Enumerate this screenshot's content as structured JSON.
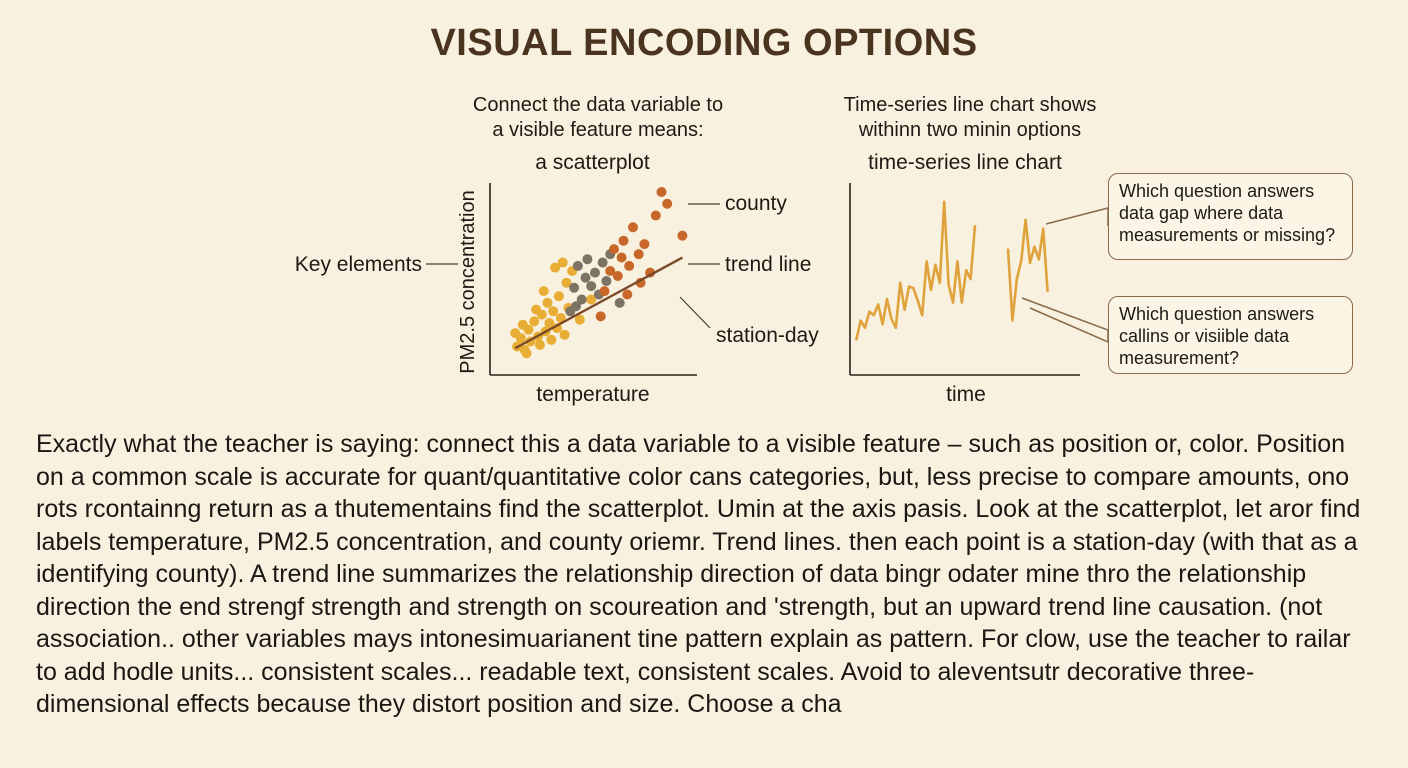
{
  "title": "VISUAL ENCODING OPTIONS",
  "scatter_panel": {
    "caption_line1": "Connect the data variable to",
    "caption_line2": "a visible feature means:",
    "chart_title": "a scatterplot",
    "xlabel": "temperature",
    "ylabel": "PM2.5 concentration",
    "annotations": {
      "key_elements": "Key elements",
      "county": "county",
      "trend_line": "trend line",
      "station_day": "station-day"
    }
  },
  "line_panel": {
    "caption_line1": "Time-series line chart shows",
    "caption_line2": "withinn two minin options",
    "chart_title": "time-series line chart",
    "xlabel": "time",
    "callout_gap": "Which question answers data gap where data measurements or missing?",
    "callout_visible": "Which question answers callins or visiible data measurement?"
  },
  "paragraph": "Exactly what the teacher is saying: connect this a data variable to a visible feature – such as position or, color. Position on a common scale is accurate for quant/quantitative color cans categories, but, less precise to compare  amounts, ono rots rcontainng return as a thutementains find the scatterplot. Umin at the axis pasis. Look at the scatterplot, let aror find labels temperature, PM2.5 concentration, and county oriemr. Trend lines. then each point is a station-day (with that as a identifying county). A trend line summarizes the relationship direction of data bingr odater mine thro the relationship direction the end strengf strength and strength on scoureation and 'strength, but an upward trend line causation. (not association.. other variables mays intonesimuarianent tine pattern explain as pattern. For clow, use the teacher to railar to add hodle units... consistent scales... readable text, consistent scales. Avoid to aleventsutr decorative three-dimensional effects because they distort position and size. Choose a cha",
  "colors": {
    "background": "#f8f1df",
    "title": "#4a3420",
    "gold": "#e8ad35",
    "orange": "#c8672a",
    "gray": "#7d7364",
    "trend": "#7a4a28",
    "line": "#e0a23c"
  },
  "chart_data": [
    {
      "type": "scatter",
      "title": "a scatterplot",
      "xlabel": "temperature",
      "ylabel": "PM2.5 concentration",
      "xlim": [
        0,
        10
      ],
      "ylim": [
        0,
        10
      ],
      "groups": [
        {
          "color": "gold",
          "points": [
            [
              0.9,
              0.8
            ],
            [
              1.1,
              1.3
            ],
            [
              1.3,
              0.6
            ],
            [
              1.5,
              1.8
            ],
            [
              1.6,
              1.1
            ],
            [
              1.8,
              2.3
            ],
            [
              2.0,
              1.4
            ],
            [
              2.1,
              0.9
            ],
            [
              2.2,
              2.7
            ],
            [
              2.4,
              1.7
            ],
            [
              2.5,
              3.4
            ],
            [
              2.6,
              2.2
            ],
            [
              2.7,
              1.2
            ],
            [
              2.8,
              2.9
            ],
            [
              3.0,
              1.9
            ],
            [
              3.1,
              3.8
            ],
            [
              3.2,
              2.5
            ],
            [
              3.4,
              1.5
            ],
            [
              3.5,
              4.6
            ],
            [
              3.6,
              3.1
            ],
            [
              1.2,
              2.1
            ],
            [
              1.9,
              3.0
            ],
            [
              2.3,
              4.1
            ],
            [
              2.9,
              5.5
            ],
            [
              3.8,
              5.3
            ],
            [
              3.3,
              5.8
            ],
            [
              4.2,
              2.4
            ],
            [
              4.8,
              3.6
            ],
            [
              0.8,
              1.6
            ],
            [
              1.4,
              0.4
            ]
          ]
        },
        {
          "color": "gray",
          "points": [
            [
              3.7,
              2.9
            ],
            [
              3.9,
              4.3
            ],
            [
              4.1,
              5.6
            ],
            [
              4.3,
              3.6
            ],
            [
              4.5,
              4.9
            ],
            [
              4.6,
              6.0
            ],
            [
              4.8,
              4.4
            ],
            [
              5.0,
              5.2
            ],
            [
              5.2,
              3.9
            ],
            [
              5.4,
              5.8
            ],
            [
              5.6,
              4.7
            ],
            [
              6.3,
              3.4
            ],
            [
              4.0,
              3.2
            ],
            [
              5.8,
              6.3
            ]
          ]
        },
        {
          "color": "orange",
          "points": [
            [
              5.3,
              2.6
            ],
            [
              5.5,
              4.1
            ],
            [
              5.8,
              5.3
            ],
            [
              6.0,
              6.6
            ],
            [
              6.2,
              5.0
            ],
            [
              6.5,
              7.1
            ],
            [
              6.8,
              5.6
            ],
            [
              7.0,
              7.9
            ],
            [
              7.3,
              6.3
            ],
            [
              7.6,
              6.9
            ],
            [
              7.9,
              5.2
            ],
            [
              8.2,
              8.6
            ],
            [
              8.8,
              9.3
            ],
            [
              8.5,
              10.0
            ],
            [
              9.6,
              7.4
            ],
            [
              6.4,
              6.1
            ],
            [
              7.4,
              4.6
            ],
            [
              6.7,
              3.9
            ]
          ]
        }
      ],
      "trend_line": [
        [
          0.8,
          0.7
        ],
        [
          9.6,
          6.1
        ]
      ]
    },
    {
      "type": "line",
      "title": "time-series line chart",
      "xlabel": "time",
      "xlim": [
        0,
        100
      ],
      "ylim": [
        0,
        10
      ],
      "series": [
        {
          "values": [
            [
              1,
              1.2
            ],
            [
              3,
              2.3
            ],
            [
              5,
              1.9
            ],
            [
              7,
              2.8
            ],
            [
              9,
              2.6
            ],
            [
              11,
              3.2
            ],
            [
              13,
              2.1
            ],
            [
              15,
              3.5
            ],
            [
              17,
              2.4
            ],
            [
              19,
              1.9
            ],
            [
              21,
              4.4
            ],
            [
              23,
              2.9
            ],
            [
              25,
              4.2
            ],
            [
              27,
              4.1
            ],
            [
              29,
              3.4
            ],
            [
              31,
              2.6
            ],
            [
              33,
              5.6
            ],
            [
              35,
              4.0
            ],
            [
              37,
              5.4
            ],
            [
              39,
              4.4
            ],
            [
              41,
              8.9
            ],
            [
              43,
              4.3
            ],
            [
              45,
              3.3
            ],
            [
              47,
              5.6
            ],
            [
              49,
              3.3
            ],
            [
              51,
              5.1
            ],
            [
              53,
              4.6
            ],
            [
              55,
              7.6
            ]
          ]
        },
        {
          "values": [
            [
              70,
              6.3
            ],
            [
              72,
              2.3
            ],
            [
              74,
              4.6
            ],
            [
              76,
              5.6
            ],
            [
              78,
              7.9
            ],
            [
              80,
              5.5
            ],
            [
              82,
              6.4
            ],
            [
              84,
              5.7
            ],
            [
              86,
              7.4
            ],
            [
              88,
              3.9
            ]
          ]
        }
      ]
    }
  ]
}
